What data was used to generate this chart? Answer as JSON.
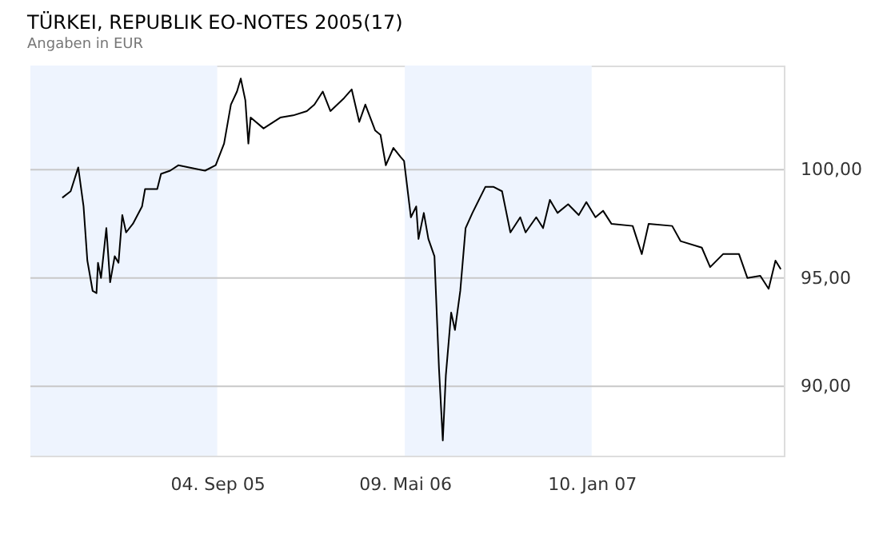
{
  "chart_data": {
    "type": "line",
    "title": "TÜRKEI, REPUBLIK EO-NOTES 2005(17)",
    "subtitle": "Angaben in EUR",
    "x": [
      "2005-02-12",
      "2005-02-23",
      "2005-03-05",
      "2005-03-12",
      "2005-03-17",
      "2005-03-24",
      "2005-03-29",
      "2005-03-31",
      "2005-04-04",
      "2005-04-11",
      "2005-04-16",
      "2005-04-22",
      "2005-04-27",
      "2005-05-02",
      "2005-05-07",
      "2005-05-16",
      "2005-05-28",
      "2005-06-01",
      "2005-06-17",
      "2005-06-22",
      "2005-07-04",
      "2005-07-15",
      "2005-07-29",
      "2005-08-19",
      "2005-09-02",
      "2005-09-13",
      "2005-09-22",
      "2005-09-30",
      "2005-10-05",
      "2005-10-11",
      "2005-10-15",
      "2005-10-18",
      "2005-11-04",
      "2005-11-26",
      "2005-12-13",
      "2005-12-31",
      "2006-01-10",
      "2006-01-21",
      "2006-01-31",
      "2006-02-18",
      "2006-02-28",
      "2006-03-10",
      "2006-03-18",
      "2006-03-31",
      "2006-04-07",
      "2006-04-14",
      "2006-04-24",
      "2006-05-03",
      "2006-05-08",
      "2006-05-17",
      "2006-05-24",
      "2006-05-27",
      "2006-06-03",
      "2006-06-09",
      "2006-06-17",
      "2006-06-23",
      "2006-06-28",
      "2006-07-02",
      "2006-07-09",
      "2006-07-14",
      "2006-07-21",
      "2006-07-28",
      "2006-08-06",
      "2006-08-23",
      "2006-09-03",
      "2006-09-14",
      "2006-09-25",
      "2006-10-08",
      "2006-10-15",
      "2006-10-29",
      "2006-11-07",
      "2006-11-16",
      "2006-11-26",
      "2006-12-10",
      "2006-12-24",
      "2007-01-03",
      "2007-01-15",
      "2007-01-25",
      "2007-02-05",
      "2007-03-05",
      "2007-03-17",
      "2007-03-26",
      "2007-04-26",
      "2007-05-07",
      "2007-06-04",
      "2007-06-15",
      "2007-07-02",
      "2007-07-23",
      "2007-08-03",
      "2007-08-20",
      "2007-08-31",
      "2007-09-09",
      "2007-09-16"
    ],
    "series": [
      {
        "color": "#000000",
        "values": [
          98.7,
          99.0,
          100.1,
          98.3,
          95.8,
          94.4,
          94.3,
          95.7,
          95.0,
          97.3,
          94.8,
          96.0,
          95.7,
          97.9,
          97.1,
          97.5,
          98.3,
          99.1,
          99.1,
          99.8,
          99.95,
          100.2,
          100.1,
          99.95,
          100.2,
          101.2,
          103.0,
          103.6,
          104.2,
          103.2,
          101.2,
          102.4,
          101.9,
          102.4,
          102.5,
          102.7,
          103.0,
          103.6,
          102.7,
          103.3,
          103.7,
          102.2,
          103.0,
          101.8,
          101.6,
          100.2,
          101.0,
          100.6,
          100.4,
          97.8,
          98.3,
          96.8,
          98.0,
          96.8,
          96.0,
          90.8,
          87.5,
          90.5,
          93.4,
          92.6,
          94.4,
          97.3,
          98.0,
          99.2,
          99.2,
          99.0,
          97.1,
          97.8,
          97.1,
          97.8,
          97.3,
          98.6,
          98.0,
          98.4,
          97.9,
          98.5,
          97.8,
          98.1,
          97.5,
          97.4,
          96.1,
          97.5,
          97.4,
          96.7,
          96.4,
          95.5,
          96.1,
          96.1,
          95.0,
          95.1,
          94.5,
          95.8,
          95.4
        ]
      }
    ],
    "xlim": [
      "2005-01-01",
      "2007-09-20"
    ],
    "xticks": [
      {
        "value": "2005-09-04",
        "label": "04. Sep 05"
      },
      {
        "value": "2006-05-09",
        "label": "09. Mai 06"
      },
      {
        "value": "2007-01-10",
        "label": "10. Jan 07"
      }
    ],
    "ylim": [
      86.8,
      104.8
    ],
    "yticks": [
      {
        "value": 90,
        "label": "90,00"
      },
      {
        "value": 95,
        "label": "95,00"
      },
      {
        "value": 100,
        "label": "100,00"
      }
    ],
    "bands": [
      {
        "axis": "x",
        "from": "2005-01-01",
        "to": "2005-09-04",
        "color": "#eef4fe"
      },
      {
        "axis": "x",
        "from": "2006-05-09",
        "to": "2007-01-10",
        "color": "#eef4fe"
      }
    ],
    "grid": "y",
    "marker": "none",
    "line_style": "solid"
  }
}
